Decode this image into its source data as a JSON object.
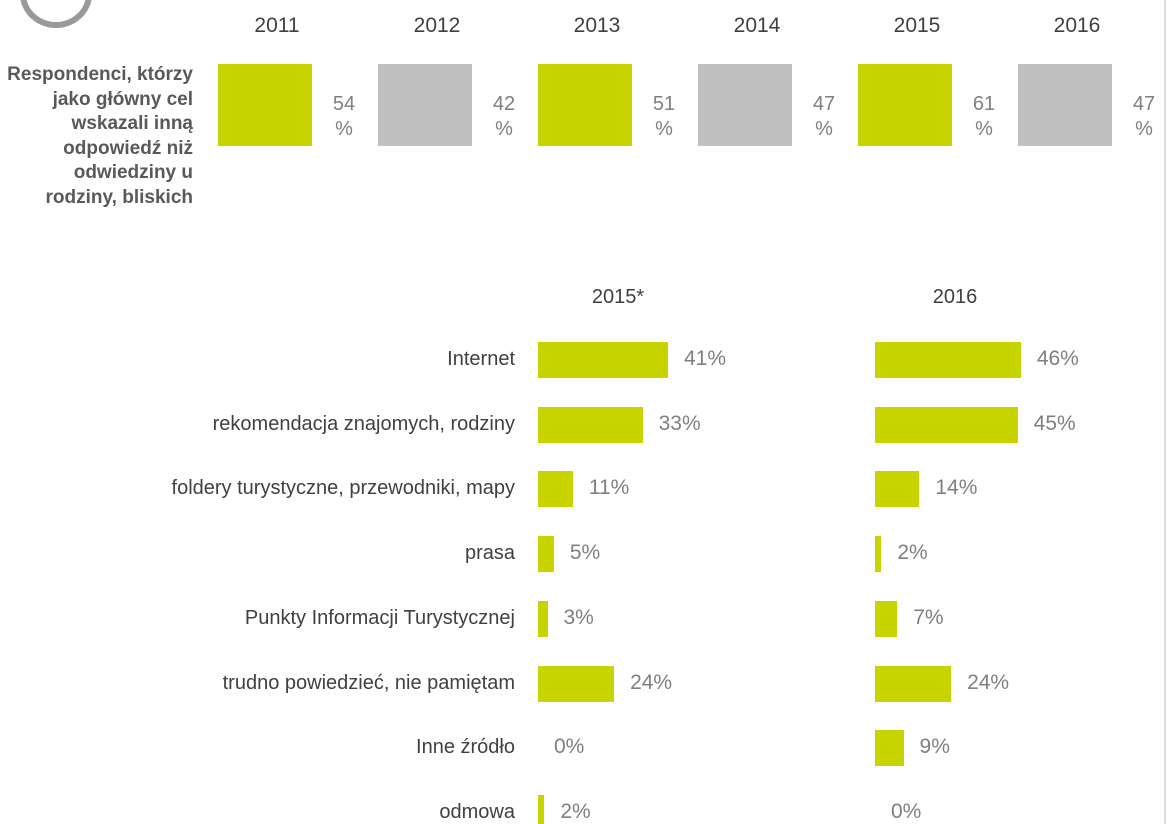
{
  "chart_data": [
    {
      "type": "tiles",
      "title": "Respondenci, którzy jako główny cel wskazali inną odpowiedź niż odwiedziny u rodziny, bliskich",
      "categories": [
        "2011",
        "2012",
        "2013",
        "2014",
        "2015",
        "2016"
      ],
      "values": [
        54,
        42,
        51,
        47,
        61,
        47
      ],
      "value_labels": [
        "54 %",
        "42 %",
        "51 %",
        "47 %",
        "61 %",
        "47 %"
      ],
      "colors": [
        "#c8d400",
        "#c0c0c0",
        "#c8d400",
        "#c0c0c0",
        "#c8d400",
        "#c0c0c0"
      ]
    },
    {
      "type": "hbar",
      "categories": [
        "Internet",
        "rekomendacja znajomych, rodziny",
        "foldery turystyczne, przewodniki, mapy",
        "prasa",
        "Punkty Informacji Turystycznej",
        "trudno powiedzieć,  nie pamiętam",
        "Inne źródło",
        "odmowa"
      ],
      "xlim": [
        0,
        100
      ],
      "series": [
        {
          "name": "2015*",
          "color": "#c8d400",
          "values": [
            41,
            33,
            11,
            5,
            3,
            24,
            0,
            2
          ],
          "value_labels": [
            "41%",
            "33%",
            "11%",
            "5%",
            "3%",
            "24%",
            "0%",
            "2%"
          ]
        },
        {
          "name": "2016",
          "color": "#c8d400",
          "values": [
            46,
            45,
            14,
            2,
            7,
            24,
            9,
            0
          ],
          "value_labels": [
            "46%",
            "45%",
            "14%",
            "2%",
            "7%",
            "24%",
            "9%",
            "0%"
          ]
        }
      ]
    }
  ]
}
